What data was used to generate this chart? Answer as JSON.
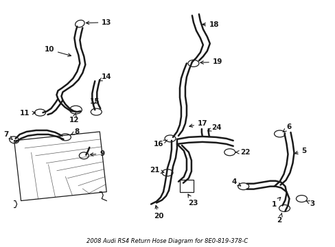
{
  "title": "2008 Audi RS4 Return Hose Diagram for 8E0-819-378-C",
  "bg_color": "#ffffff",
  "line_color": "#1a1a1a",
  "label_color": "#000000",
  "figsize": [
    4.89,
    3.6
  ],
  "dpi": 100,
  "xlim": [
    0,
    489
  ],
  "ylim": [
    0,
    360
  ]
}
